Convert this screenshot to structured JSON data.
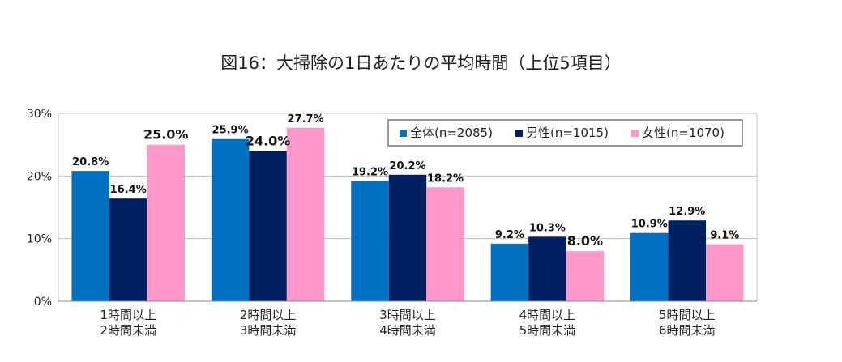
{
  "chart_data": {
    "type": "bar",
    "title": "図16：大掃除の1日あたりの平均時間（上位5項目）",
    "categories": [
      [
        "1時間以上",
        "2時間未満"
      ],
      [
        "2時間以上",
        "3時間未満"
      ],
      [
        "3時間以上",
        "4時間未満"
      ],
      [
        "4時間以上",
        "5時間未満"
      ],
      [
        "5時間以上",
        "6時間未満"
      ]
    ],
    "series": [
      {
        "name": "全体(n=2085)",
        "color": "#0070C0",
        "values": [
          20.8,
          25.9,
          19.2,
          9.2,
          10.9
        ],
        "labels": [
          "20.8%",
          "25.9%",
          "19.2%",
          "9.2%",
          "10.9%"
        ]
      },
      {
        "name": "男性(n=1015)",
        "color": "#002060",
        "values": [
          16.4,
          24.0,
          20.2,
          10.3,
          12.9
        ],
        "labels": [
          "16.4%",
          "24.0%",
          "20.2%",
          "10.3%",
          "12.9%"
        ]
      },
      {
        "name": "女性(n=1070)",
        "color": "#FF99CC",
        "values": [
          25.0,
          27.7,
          18.2,
          8.0,
          9.1
        ],
        "labels": [
          "25.0%",
          "27.7%",
          "18.2%",
          "8.0%",
          "9.1%"
        ]
      }
    ],
    "emphasized_labels": [
      "25.0%",
      "24.0%",
      "8.0%"
    ],
    "yticks": [
      "0%",
      "10%",
      "20%",
      "30%"
    ],
    "ylim": [
      0,
      30
    ],
    "grid": true,
    "legend_position": "top-right",
    "xlabel": "",
    "ylabel": ""
  }
}
